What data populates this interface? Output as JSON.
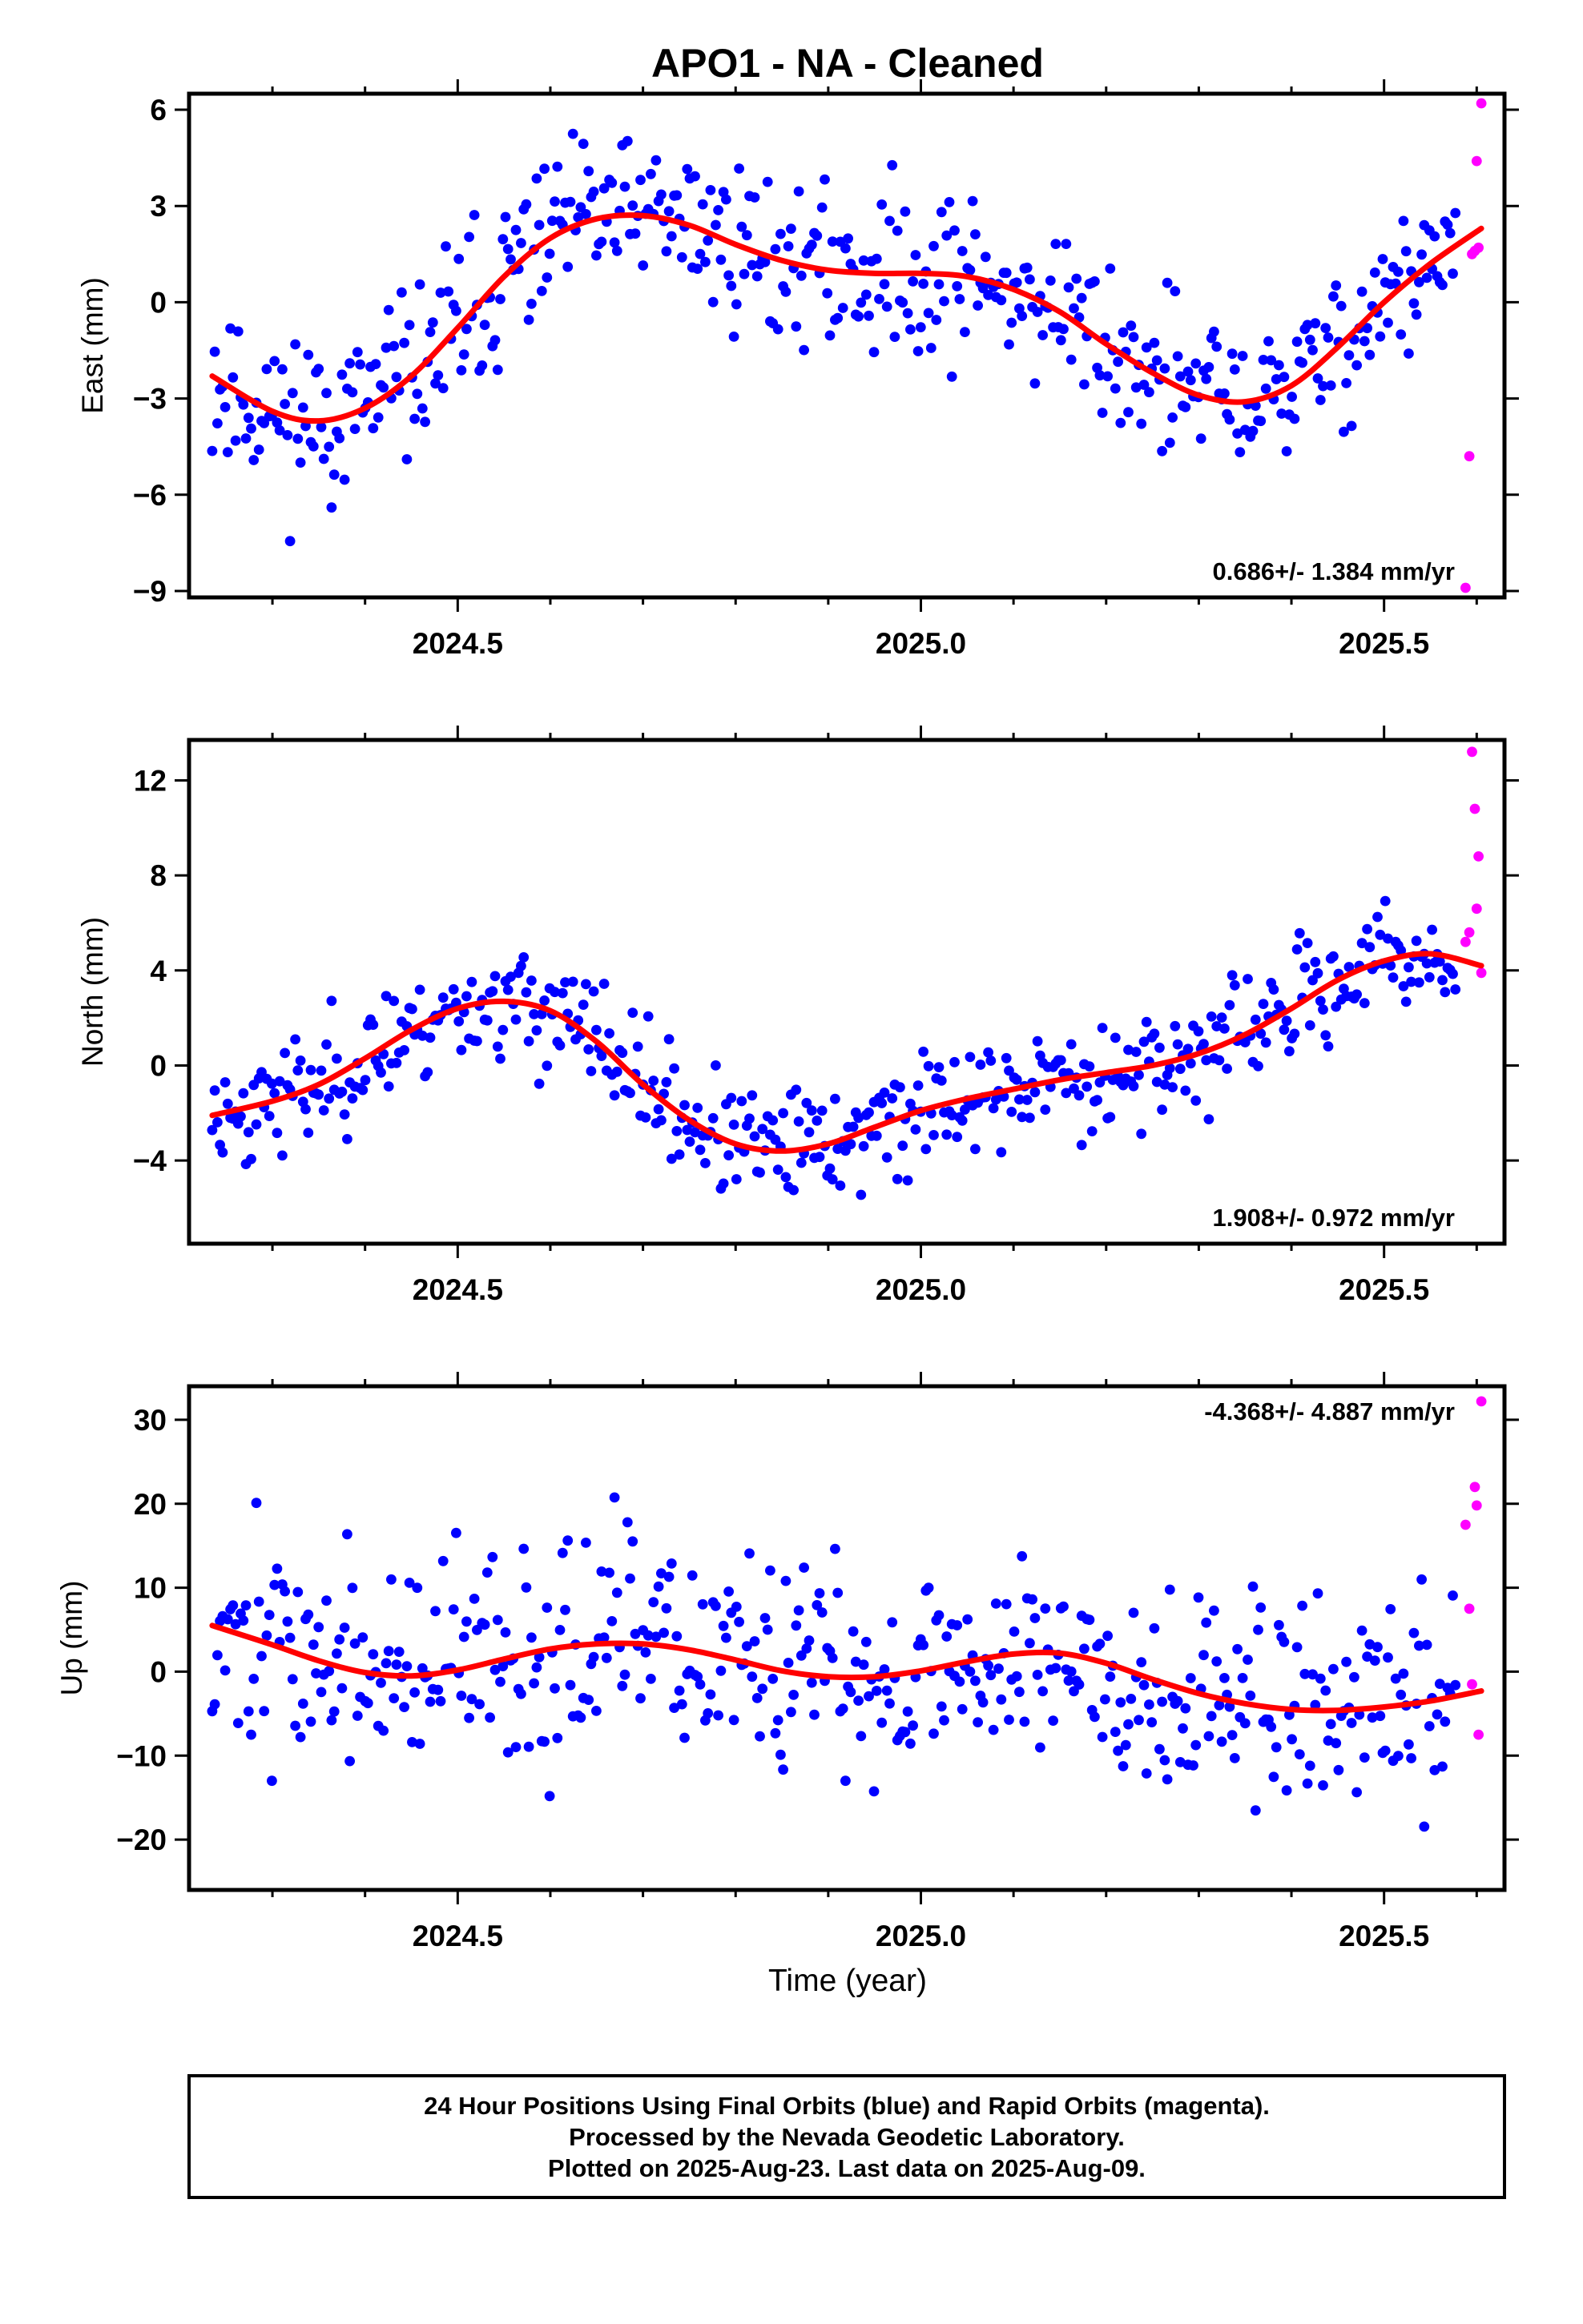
{
  "figure": {
    "title": "APO1  - NA - Cleaned",
    "x_axis_label": "Time (year)",
    "footnote": [
      "24 Hour Positions Using Final Orbits (blue) and Rapid Orbits (magenta).",
      "Processed by the Nevada Geodetic Laboratory.",
      "Plotted on 2025-Aug-23. Last data on 2025-Aug-09."
    ]
  },
  "colors": {
    "final": "#0000ff",
    "rapid": "#ff00ff",
    "fit": "#ff0000",
    "frame": "#000000"
  },
  "chart_data": [
    {
      "type": "scatter",
      "component": "East",
      "ylabel": "East (mm)",
      "rate_label": "0.686+/- 1.384 mm/yr",
      "rate_position": "bottom-right",
      "xlim": [
        2024.21,
        2025.63
      ],
      "ylim": [
        -9.2,
        6.5
      ],
      "x_ticks": [
        2024.5,
        2025.0,
        2025.5
      ],
      "x_tick_labels": [
        "2024.5",
        "2025.0",
        "2025.5"
      ],
      "x_minor_ticks": [
        2024.3,
        2024.4,
        2024.6,
        2024.7,
        2024.8,
        2024.9,
        2025.1,
        2025.2,
        2025.3,
        2025.4,
        2025.6
      ],
      "y_ticks": [
        -9,
        -6,
        -3,
        0,
        3,
        6
      ],
      "grid": false,
      "final_scatter": {
        "t_start": 2024.235,
        "t_end": 2025.577,
        "count": 480,
        "noise": 1.3,
        "seed": 11
      },
      "rapid_points": {
        "x": [
          2025.588,
          2025.592,
          2025.595,
          2025.598,
          2025.6,
          2025.602,
          2025.605
        ],
        "y": [
          -8.9,
          -4.8,
          1.5,
          1.6,
          4.4,
          1.7,
          6.2
        ]
      },
      "trend_fit": {
        "x": [
          2024.235,
          2024.3,
          2024.35,
          2024.4,
          2024.45,
          2024.5,
          2024.55,
          2024.6,
          2024.65,
          2024.7,
          2024.75,
          2024.8,
          2024.85,
          2024.9,
          2024.95,
          2025.0,
          2025.05,
          2025.1,
          2025.15,
          2025.2,
          2025.25,
          2025.3,
          2025.35,
          2025.4,
          2025.45,
          2025.5,
          2025.55,
          2025.605
        ],
        "y": [
          -2.3,
          -3.4,
          -3.7,
          -3.3,
          -2.3,
          -0.8,
          0.8,
          2.0,
          2.6,
          2.7,
          2.4,
          1.8,
          1.3,
          1.0,
          0.9,
          0.9,
          0.8,
          0.4,
          -0.3,
          -1.3,
          -2.2,
          -2.9,
          -3.1,
          -2.6,
          -1.4,
          0.0,
          1.2,
          2.3
        ]
      }
    },
    {
      "type": "scatter",
      "component": "North",
      "ylabel": "North (mm)",
      "rate_label": "1.908+/- 0.972 mm/yr",
      "rate_position": "bottom-right",
      "xlim": [
        2024.21,
        2025.63
      ],
      "ylim": [
        -7.5,
        13.7
      ],
      "x_ticks": [
        2024.5,
        2025.0,
        2025.5
      ],
      "x_tick_labels": [
        "2024.5",
        "2025.0",
        "2025.5"
      ],
      "x_minor_ticks": [
        2024.3,
        2024.4,
        2024.6,
        2024.7,
        2024.8,
        2024.9,
        2025.1,
        2025.2,
        2025.3,
        2025.4,
        2025.6
      ],
      "y_ticks": [
        -4,
        0,
        4,
        8,
        12
      ],
      "grid": false,
      "final_scatter": {
        "t_start": 2024.235,
        "t_end": 2025.577,
        "count": 480,
        "noise": 1.2,
        "seed": 23
      },
      "rapid_points": {
        "x": [
          2025.588,
          2025.592,
          2025.595,
          2025.598,
          2025.6,
          2025.602,
          2025.605
        ],
        "y": [
          5.2,
          5.6,
          13.2,
          10.8,
          6.6,
          8.8,
          3.9
        ]
      },
      "trend_fit": {
        "x": [
          2024.235,
          2024.3,
          2024.35,
          2024.4,
          2024.45,
          2024.5,
          2024.55,
          2024.6,
          2024.65,
          2024.7,
          2024.75,
          2024.8,
          2024.85,
          2024.9,
          2024.95,
          2025.0,
          2025.05,
          2025.1,
          2025.15,
          2025.2,
          2025.25,
          2025.3,
          2025.35,
          2025.4,
          2025.45,
          2025.5,
          2025.55,
          2025.605
        ],
        "y": [
          -2.1,
          -1.5,
          -0.8,
          0.3,
          1.5,
          2.4,
          2.7,
          2.3,
          1.0,
          -0.8,
          -2.3,
          -3.3,
          -3.6,
          -3.3,
          -2.6,
          -1.9,
          -1.4,
          -1.0,
          -0.6,
          -0.3,
          0.0,
          0.5,
          1.3,
          2.4,
          3.6,
          4.4,
          4.7,
          4.2
        ]
      }
    },
    {
      "type": "scatter",
      "component": "Up",
      "ylabel": "Up (mm)",
      "rate_label": "-4.368+/- 4.887 mm/yr",
      "rate_position": "top-right",
      "xlim": [
        2024.21,
        2025.63
      ],
      "ylim": [
        -26,
        34
      ],
      "x_ticks": [
        2024.5,
        2025.0,
        2025.5
      ],
      "x_tick_labels": [
        "2024.5",
        "2025.0",
        "2025.5"
      ],
      "x_minor_ticks": [
        2024.3,
        2024.4,
        2024.6,
        2024.7,
        2024.8,
        2024.9,
        2025.1,
        2025.2,
        2025.3,
        2025.4,
        2025.6
      ],
      "y_ticks": [
        -20,
        -10,
        0,
        10,
        20,
        30
      ],
      "grid": false,
      "final_scatter": {
        "t_start": 2024.235,
        "t_end": 2025.577,
        "count": 480,
        "noise": 6.5,
        "seed": 37
      },
      "rapid_points": {
        "x": [
          2025.588,
          2025.592,
          2025.595,
          2025.598,
          2025.6,
          2025.602,
          2025.605
        ],
        "y": [
          17.5,
          7.5,
          -1.5,
          22.0,
          19.8,
          -7.5,
          32.2
        ]
      },
      "trend_fit": {
        "x": [
          2024.235,
          2024.3,
          2024.35,
          2024.4,
          2024.45,
          2024.5,
          2024.55,
          2024.6,
          2024.65,
          2024.7,
          2024.75,
          2024.8,
          2024.85,
          2024.9,
          2024.95,
          2025.0,
          2025.05,
          2025.1,
          2025.15,
          2025.2,
          2025.25,
          2025.3,
          2025.35,
          2025.4,
          2025.45,
          2025.5,
          2025.55,
          2025.605
        ],
        "y": [
          5.5,
          3.2,
          1.3,
          -0.1,
          -0.5,
          0.2,
          1.5,
          2.7,
          3.3,
          3.3,
          2.6,
          1.4,
          0.1,
          -0.6,
          -0.6,
          0.1,
          1.2,
          2.1,
          2.2,
          1.0,
          -0.9,
          -2.6,
          -3.8,
          -4.5,
          -4.6,
          -4.2,
          -3.5,
          -2.3
        ]
      }
    }
  ]
}
